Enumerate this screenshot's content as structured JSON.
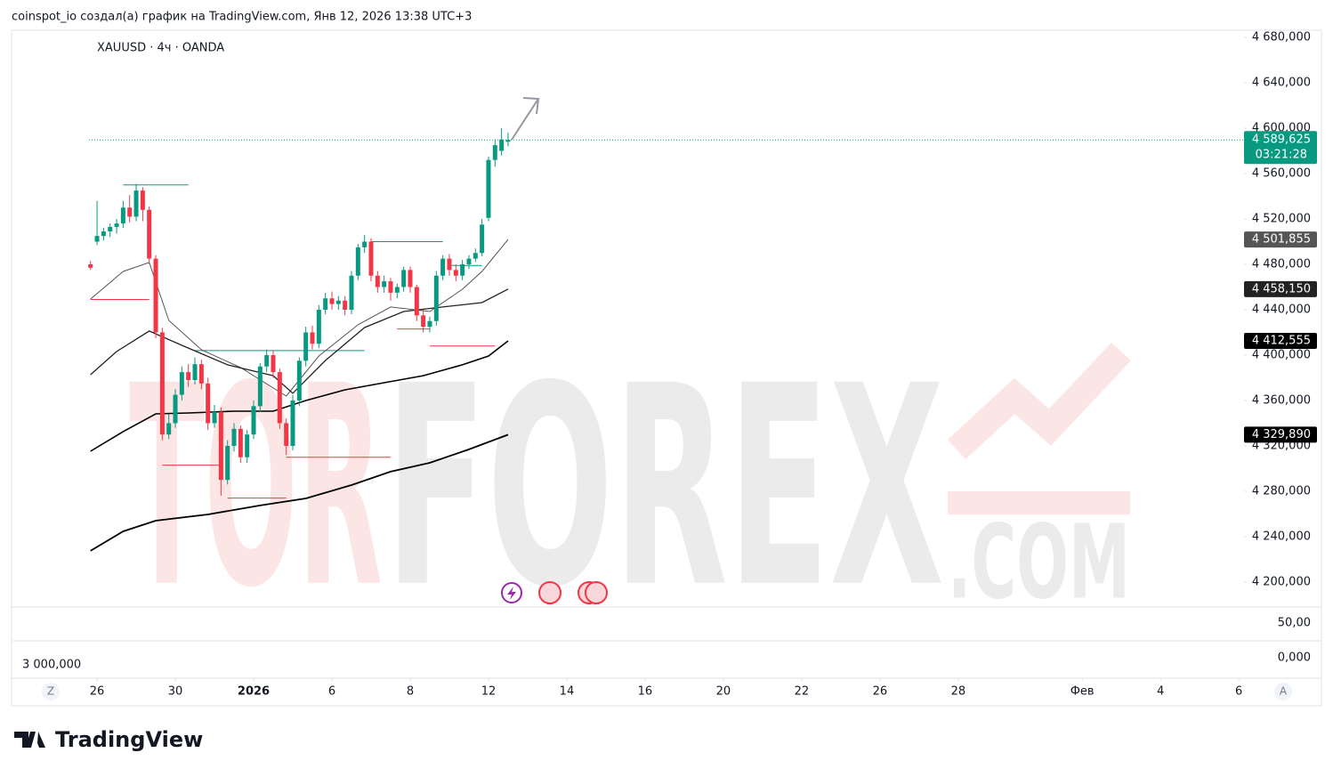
{
  "chart_data": {
    "type": "candlestick",
    "header": "coinspot_io создал(а) график на TradingView.com, Янв 12, 2026 13:38 UTC+3",
    "title": "XAUUSD · 4ч · OANDA",
    "up_color": "#089981",
    "down_color": "#f23645",
    "x": [
      0,
      1,
      2,
      3,
      4,
      5,
      6,
      7,
      8,
      9,
      10,
      11,
      12,
      13,
      14,
      15,
      16,
      17,
      18,
      19,
      20,
      21,
      22,
      23,
      24,
      25,
      26,
      27,
      28,
      29,
      30,
      31,
      32,
      33,
      34,
      35,
      36,
      37,
      38,
      39,
      40,
      41,
      42,
      43,
      44,
      45,
      46,
      47,
      48,
      49,
      50,
      51,
      52,
      53,
      54,
      55,
      56,
      57,
      58,
      59,
      60,
      61,
      62,
      63,
      64
    ],
    "open": [
      4480,
      4500,
      4505,
      4509,
      4513,
      4516,
      4530,
      4522,
      4545,
      4528,
      4485,
      4420,
      4330,
      4340,
      4365,
      4385,
      4378,
      4392,
      4375,
      4340,
      4350,
      4290,
      4320,
      4335,
      4310,
      4330,
      4355,
      4390,
      4400,
      4385,
      4340,
      4320,
      4360,
      4395,
      4420,
      4410,
      4440,
      4450,
      4445,
      4448,
      4440,
      4470,
      4495,
      4500,
      4470,
      4460,
      4465,
      4455,
      4460,
      4475,
      4460,
      4435,
      4425,
      4430,
      4470,
      4485,
      4475,
      4470,
      4480,
      4485,
      4490,
      4521,
      4572,
      4580,
      4588
    ],
    "high": [
      4483,
      4536,
      4512,
      4516,
      4520,
      4536,
      4541,
      4551,
      4548,
      4531,
      4488,
      4424,
      4348,
      4370,
      4390,
      4392,
      4398,
      4396,
      4380,
      4356,
      4354,
      4325,
      4340,
      4338,
      4334,
      4360,
      4393,
      4405,
      4404,
      4388,
      4344,
      4365,
      4398,
      4425,
      4426,
      4444,
      4455,
      4456,
      4452,
      4452,
      4474,
      4498,
      4506,
      4503,
      4474,
      4470,
      4468,
      4463,
      4478,
      4478,
      4462,
      4440,
      4434,
      4474,
      4488,
      4489,
      4480,
      4484,
      4488,
      4494,
      4520,
      4575,
      4590,
      4600,
      4596
    ],
    "low": [
      4475,
      4497,
      4501,
      4504,
      4507,
      4512,
      4517,
      4518,
      4518,
      4480,
      4415,
      4325,
      4326,
      4336,
      4360,
      4372,
      4374,
      4370,
      4334,
      4336,
      4276,
      4286,
      4315,
      4305,
      4305,
      4326,
      4350,
      4385,
      4380,
      4335,
      4312,
      4316,
      4355,
      4390,
      4405,
      4406,
      4436,
      4440,
      4440,
      4435,
      4436,
      4466,
      4490,
      4465,
      4455,
      4455,
      4448,
      4450,
      4456,
      4455,
      4430,
      4420,
      4420,
      4426,
      4466,
      4470,
      4465,
      4466,
      4476,
      4482,
      4487,
      4518,
      4566,
      4576,
      4584
    ],
    "close": [
      4477,
      4505,
      4509,
      4513,
      4516,
      4530,
      4522,
      4545,
      4528,
      4485,
      4420,
      4330,
      4340,
      4365,
      4385,
      4378,
      4392,
      4375,
      4340,
      4350,
      4290,
      4320,
      4335,
      4310,
      4330,
      4355,
      4390,
      4400,
      4385,
      4340,
      4320,
      4360,
      4395,
      4420,
      4410,
      4440,
      4450,
      4445,
      4448,
      4440,
      4470,
      4495,
      4500,
      4470,
      4460,
      4465,
      4455,
      4460,
      4475,
      4460,
      4435,
      4425,
      4430,
      4470,
      4485,
      4475,
      4470,
      4480,
      4485,
      4490,
      4515,
      4572,
      4585,
      4590,
      4589.625
    ],
    "xlim": [
      -12.1,
      176.8
    ],
    "ylim": [
      4178,
      4685.5
    ],
    "xticks": [
      {
        "value": 1,
        "label": "26"
      },
      {
        "value": 13,
        "label": "30"
      },
      {
        "value": 25,
        "label": "2026"
      },
      {
        "value": 37,
        "label": "6"
      },
      {
        "value": 49,
        "label": "8"
      },
      {
        "value": 61,
        "label": "12"
      },
      {
        "value": 73,
        "label": "14"
      },
      {
        "value": 85,
        "label": "16"
      },
      {
        "value": 97,
        "label": "20"
      },
      {
        "value": 109,
        "label": "22"
      },
      {
        "value": 121,
        "label": "26"
      },
      {
        "value": 133,
        "label": "28"
      },
      {
        "value": 152,
        "label": "Фев"
      },
      {
        "value": 164,
        "label": "4"
      },
      {
        "value": 176,
        "label": "6"
      }
    ],
    "yticks": [
      {
        "value": 4680,
        "label": "4 680,000"
      },
      {
        "value": 4640,
        "label": "4 640,000"
      },
      {
        "value": 4600,
        "label": "4 600,000"
      },
      {
        "value": 4560,
        "label": "4 560,000"
      },
      {
        "value": 4520,
        "label": "4 520,000"
      },
      {
        "value": 4480,
        "label": "4 480,000"
      },
      {
        "value": 4440,
        "label": "4 440,000"
      },
      {
        "value": 4400,
        "label": "4 400,000"
      },
      {
        "value": 4360,
        "label": "4 360,000"
      },
      {
        "value": 4320,
        "label": "4 320,000"
      },
      {
        "value": 4280,
        "label": "4 280,000"
      },
      {
        "value": 4240,
        "label": "4 240,000"
      },
      {
        "value": 4200,
        "label": "4 200,000"
      }
    ],
    "grid": false,
    "moving_averages": [
      {
        "color": "#555555",
        "width": 1,
        "x": [
          0,
          5,
          9,
          12,
          17,
          23,
          30,
          35,
          41,
          46,
          52,
          57,
          60,
          64
        ],
        "values": [
          4449.4,
          4473.7,
          4481.6,
          4430.6,
          4404.7,
          4389.0,
          4363.9,
          4399.2,
          4426.7,
          4442.4,
          4438.4,
          4458.0,
          4473.7,
          4501.855
        ]
      },
      {
        "color": "#222222",
        "width": 1.3,
        "x": [
          0,
          4,
          9,
          14,
          21,
          28,
          31,
          36,
          42,
          48,
          54,
          60,
          64
        ],
        "values": [
          4382.7,
          4403.1,
          4421.2,
          4408.6,
          4391.4,
          4381.9,
          4366.3,
          4395.3,
          4424.3,
          4438.4,
          4442.4,
          4446.3,
          4458.15
        ]
      },
      {
        "color": "#000000",
        "width": 1.6,
        "x": [
          0,
          5,
          10,
          15,
          22,
          28,
          33,
          39,
          45,
          51,
          57,
          61,
          64
        ],
        "values": [
          4315.3,
          4332.6,
          4348.2,
          4349.0,
          4350.6,
          4350.6,
          4360.0,
          4369.4,
          4375.7,
          4381.9,
          4391.4,
          4399.2,
          4412.555
        ]
      },
      {
        "color": "#000000",
        "width": 1.8,
        "x": [
          0,
          5,
          10,
          18,
          26,
          33,
          40,
          46,
          52,
          58,
          64
        ],
        "values": [
          4227.5,
          4244.7,
          4254.1,
          4259.6,
          4267.5,
          4273.7,
          4285.5,
          4297.3,
          4305.1,
          4316.9,
          4329.89
        ]
      }
    ],
    "levels": [
      {
        "value": 4550,
        "x": [
          5,
          15
        ],
        "color": "#089981"
      },
      {
        "value": 4449,
        "x": [
          0,
          9
        ],
        "color": "#f23645"
      },
      {
        "value": 4404,
        "x": [
          16,
          42
        ],
        "color": "#089981"
      },
      {
        "value": 4303,
        "x": [
          11,
          20
        ],
        "color": "#f23645"
      },
      {
        "value": 4274,
        "x": [
          21,
          30
        ],
        "color": "#f23645"
      },
      {
        "value": 4310,
        "x": [
          30,
          46
        ],
        "color": "#f23645"
      },
      {
        "value": 4500,
        "x": [
          43,
          54
        ],
        "color": "#089981"
      },
      {
        "value": 4423,
        "x": [
          47,
          52
        ],
        "color": "#f23645"
      },
      {
        "value": 4408,
        "x": [
          52,
          62
        ],
        "color": "#f23645"
      },
      {
        "value": 4479,
        "x": [
          55,
          60
        ],
        "color": "#089981"
      }
    ],
    "last_price": {
      "value": 4589.625,
      "label": "4 589,625",
      "countdown": "03:21:28",
      "color": "#089981"
    },
    "price_labels": [
      {
        "value": 4501.855,
        "label": "4 501,855",
        "color": "#555555"
      },
      {
        "value": 4458.15,
        "label": "4 458,150",
        "color": "#222222"
      },
      {
        "value": 4412.555,
        "label": "4 412,555",
        "color": "#000000"
      },
      {
        "value": 4329.89,
        "label": "4 329,890",
        "color": "#000000"
      }
    ],
    "pane_labels": [
      "50,00",
      "0,000",
      "3 000,000"
    ],
    "watermark": [
      "TOR",
      "FOREX",
      ".COM"
    ],
    "buttons": [
      "Z",
      "A"
    ],
    "brand": "TradingView"
  }
}
